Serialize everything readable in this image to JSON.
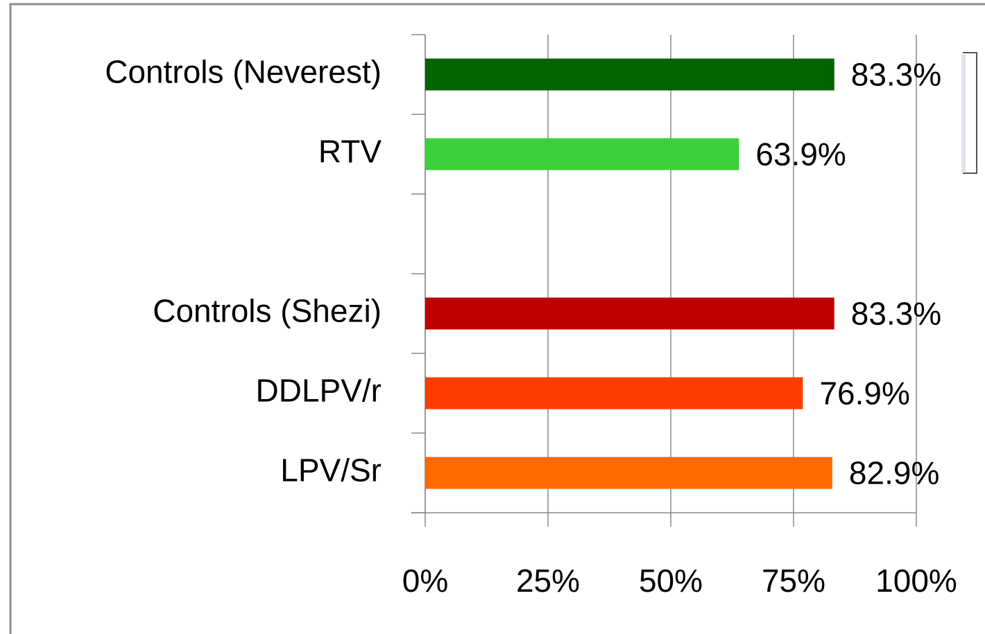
{
  "chart_data": {
    "type": "bar",
    "orientation": "horizontal",
    "categories": [
      "Controls (Neverest)",
      "RTV",
      null,
      "Controls (Shezi)",
      "DDLPV/r",
      "LPV/Sr"
    ],
    "values": [
      83.3,
      63.9,
      null,
      83.3,
      76.9,
      82.9
    ],
    "value_labels": [
      "83.3%",
      "63.9%",
      null,
      "83.3%",
      "76.9%",
      "82.9%"
    ],
    "colors": [
      "#006400",
      "#3cd03c",
      null,
      "#c00000",
      "#ff3c00",
      "#ff6a00"
    ],
    "xlim": [
      0,
      100
    ],
    "xticks": [
      {
        "value": 0,
        "label": "0%"
      },
      {
        "value": 25,
        "label": "25%"
      },
      {
        "value": 50,
        "label": "50%"
      },
      {
        "value": 75,
        "label": "75%"
      },
      {
        "value": 100,
        "label": "100%"
      }
    ],
    "grid": true
  }
}
